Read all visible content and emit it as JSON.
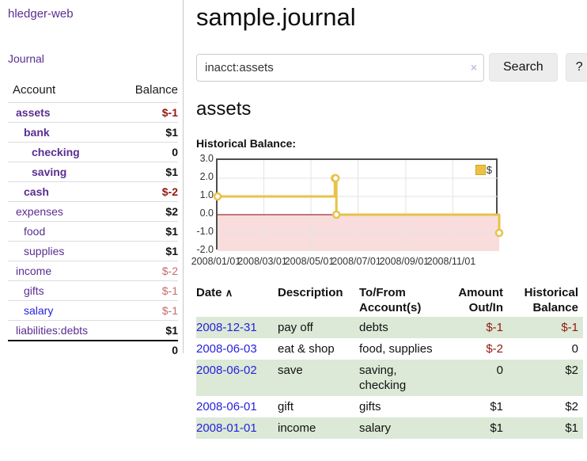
{
  "app": {
    "brand": "hledger-web",
    "nav_journal": "Journal"
  },
  "sidebar": {
    "header": {
      "account": "Account",
      "balance": "Balance"
    },
    "accounts": [
      {
        "name": "assets",
        "balance": "$-1",
        "depth": 0,
        "bold": true,
        "negative": true
      },
      {
        "name": "bank",
        "balance": "$1",
        "depth": 1,
        "bold": true,
        "negative": false
      },
      {
        "name": "checking",
        "balance": "0",
        "depth": 2,
        "bold": true,
        "negative": false
      },
      {
        "name": "saving",
        "balance": "$1",
        "depth": 2,
        "bold": true,
        "negative": false
      },
      {
        "name": "cash",
        "balance": "$-2",
        "depth": 1,
        "bold": true,
        "negative": true
      },
      {
        "name": "expenses",
        "balance": "$2",
        "depth": 0,
        "bold": false,
        "negative": false
      },
      {
        "name": "food",
        "balance": "$1",
        "depth": 1,
        "bold": false,
        "negative": false
      },
      {
        "name": "supplies",
        "balance": "$1",
        "depth": 1,
        "bold": false,
        "negative": false
      },
      {
        "name": "income",
        "balance": "$-2",
        "depth": 0,
        "bold": false,
        "negative": true
      },
      {
        "name": "gifts",
        "balance": "$-1",
        "depth": 1,
        "bold": false,
        "negative": true
      },
      {
        "name": "salary",
        "balance": "$-1",
        "depth": 1,
        "bold": false,
        "negative": true
      },
      {
        "name": "liabilities:debts",
        "balance": "$1",
        "depth": 0,
        "bold": false,
        "negative": false
      }
    ],
    "total": "0"
  },
  "header": {
    "title": "sample.journal"
  },
  "search": {
    "query": "inacct:assets",
    "clear": "×",
    "button_label": "Search",
    "help_label": "?"
  },
  "page": {
    "heading": "assets",
    "chart_label": "Historical Balance:"
  },
  "chart_data": {
    "type": "line",
    "title": "Historical Balance",
    "step": true,
    "x_range": [
      "2008-01-01",
      "2008-12-31"
    ],
    "ylim": [
      -2,
      3
    ],
    "y_ticks": [
      "3.0",
      "2.0",
      "1.0",
      "0.0",
      "-1.0",
      "-2.0"
    ],
    "x_ticks": [
      {
        "label": "2008/01/01",
        "date": "2008-01-01"
      },
      {
        "label": "2008/03/01",
        "date": "2008-03-01"
      },
      {
        "label": "2008/05/01",
        "date": "2008-05-01"
      },
      {
        "label": "2008/07/01",
        "date": "2008-07-01"
      },
      {
        "label": "2008/09/01",
        "date": "2008-09-01"
      },
      {
        "label": "2008/11/01",
        "date": "2008-11-01"
      }
    ],
    "series": [
      {
        "name": "$",
        "color": "#e8c24a",
        "points": [
          [
            "2008-01-01",
            1
          ],
          [
            "2008-06-01",
            2
          ],
          [
            "2008-06-02",
            2
          ],
          [
            "2008-06-03",
            0
          ],
          [
            "2008-12-31",
            -1
          ]
        ]
      }
    ],
    "grid": true,
    "grid_color": "#e3e3e3",
    "negative_region_color": "#f9dcdc",
    "zero_line_color": "#8b0000",
    "legend": {
      "position": "top-right",
      "label": "$"
    }
  },
  "register": {
    "headers": [
      "Date",
      "Description",
      "To/From Account(s)",
      "Amount Out/In",
      "Historical Balance"
    ],
    "sort_icon": "∧",
    "rows": [
      {
        "date": "2008-12-31",
        "description": "pay off",
        "accounts": "debts",
        "amount": "$-1",
        "balance": "$-1"
      },
      {
        "date": "2008-06-03",
        "description": "eat & shop",
        "accounts": "food, supplies",
        "amount": "$-2",
        "balance": "0"
      },
      {
        "date": "2008-06-02",
        "description": "save",
        "accounts": "saving, checking",
        "amount": "0",
        "balance": "$2"
      },
      {
        "date": "2008-06-01",
        "description": "gift",
        "accounts": "gifts",
        "amount": "$1",
        "balance": "$2"
      },
      {
        "date": "2008-01-01",
        "description": "income",
        "accounts": "salary",
        "amount": "$1",
        "balance": "$1"
      }
    ]
  }
}
